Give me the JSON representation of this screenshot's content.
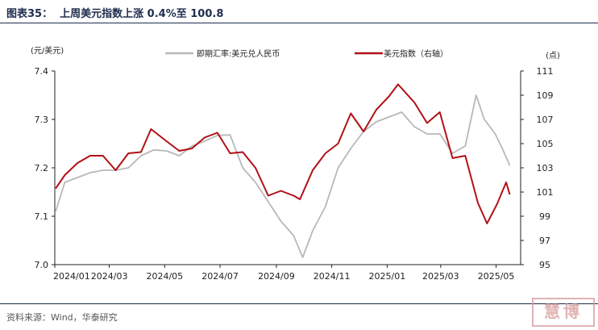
{
  "header": {
    "title": "图表35：  上周美元指数上涨 0.4%至 100.8"
  },
  "footer": {
    "source": "资料来源：Wind，华泰研究"
  },
  "watermark": {
    "text": "慧博"
  },
  "chart_data": {
    "type": "line",
    "title": "",
    "left_unit": "(元/美元)",
    "right_unit": "(点)",
    "x_ticks": [
      "2024/01",
      "2024/03",
      "2024/05",
      "2024/07",
      "2024/09",
      "2024/11",
      "2025/01",
      "2025/03",
      "2025/05"
    ],
    "y_left": {
      "range": [
        7.0,
        7.4
      ],
      "ticks": [
        "7.0",
        "7.1",
        "7.2",
        "7.3",
        "7.4"
      ]
    },
    "y_right": {
      "range": [
        95,
        111
      ],
      "ticks": [
        "95",
        "97",
        "99",
        "101",
        "103",
        "105",
        "107",
        "109",
        "111"
      ]
    },
    "legend_position": "top",
    "series": [
      {
        "name": "即期汇率:美元兑人民币",
        "axis": "left",
        "color": "#b8b8b8",
        "points": [
          [
            "2024/01/02",
            7.11
          ],
          [
            "2024/01/12",
            7.17
          ],
          [
            "2024/01/26",
            7.18
          ],
          [
            "2024/02/09",
            7.19
          ],
          [
            "2024/02/23",
            7.195
          ],
          [
            "2024/03/08",
            7.195
          ],
          [
            "2024/03/22",
            7.2
          ],
          [
            "2024/04/05",
            7.225
          ],
          [
            "2024/04/19",
            7.237
          ],
          [
            "2024/05/03",
            7.235
          ],
          [
            "2024/05/17",
            7.225
          ],
          [
            "2024/05/31",
            7.245
          ],
          [
            "2024/06/14",
            7.255
          ],
          [
            "2024/06/28",
            7.267
          ],
          [
            "2024/07/12",
            7.268
          ],
          [
            "2024/07/26",
            7.2
          ],
          [
            "2024/08/09",
            7.17
          ],
          [
            "2024/08/23",
            7.13
          ],
          [
            "2024/09/06",
            7.09
          ],
          [
            "2024/09/20",
            7.06
          ],
          [
            "2024/09/30",
            7.015
          ],
          [
            "2024/10/11",
            7.07
          ],
          [
            "2024/10/25",
            7.12
          ],
          [
            "2024/11/08",
            7.2
          ],
          [
            "2024/11/22",
            7.24
          ],
          [
            "2024/12/06",
            7.275
          ],
          [
            "2024/12/20",
            7.295
          ],
          [
            "2025/01/03",
            7.305
          ],
          [
            "2025/01/17",
            7.315
          ],
          [
            "2025/01/31",
            7.285
          ],
          [
            "2025/02/14",
            7.27
          ],
          [
            "2025/02/28",
            7.27
          ],
          [
            "2025/03/14",
            7.23
          ],
          [
            "2025/03/28",
            7.245
          ],
          [
            "2025/04/09",
            7.35
          ],
          [
            "2025/04/18",
            7.3
          ],
          [
            "2025/04/30",
            7.27
          ],
          [
            "2025/05/09",
            7.235
          ],
          [
            "2025/05/16",
            7.205
          ]
        ]
      },
      {
        "name": "美元指数（右轴）",
        "axis": "right",
        "color": "#b01116",
        "points": [
          [
            "2024/01/02",
            101.3
          ],
          [
            "2024/01/12",
            102.4
          ],
          [
            "2024/01/26",
            103.4
          ],
          [
            "2024/02/09",
            104.0
          ],
          [
            "2024/02/23",
            104.0
          ],
          [
            "2024/03/08",
            102.8
          ],
          [
            "2024/03/22",
            104.2
          ],
          [
            "2024/04/05",
            104.3
          ],
          [
            "2024/04/16",
            106.2
          ],
          [
            "2024/05/03",
            105.2
          ],
          [
            "2024/05/17",
            104.4
          ],
          [
            "2024/05/31",
            104.6
          ],
          [
            "2024/06/14",
            105.5
          ],
          [
            "2024/06/28",
            105.9
          ],
          [
            "2024/07/12",
            104.2
          ],
          [
            "2024/07/26",
            104.3
          ],
          [
            "2024/08/09",
            103.0
          ],
          [
            "2024/08/23",
            100.7
          ],
          [
            "2024/09/06",
            101.1
          ],
          [
            "2024/09/20",
            100.7
          ],
          [
            "2024/09/27",
            100.4
          ],
          [
            "2024/10/11",
            102.8
          ],
          [
            "2024/10/25",
            104.2
          ],
          [
            "2024/11/08",
            105.0
          ],
          [
            "2024/11/22",
            107.5
          ],
          [
            "2024/12/06",
            106.0
          ],
          [
            "2024/12/20",
            107.8
          ],
          [
            "2025/01/03",
            108.9
          ],
          [
            "2025/01/13",
            109.9
          ],
          [
            "2025/01/31",
            108.4
          ],
          [
            "2025/02/14",
            106.7
          ],
          [
            "2025/02/28",
            107.6
          ],
          [
            "2025/03/14",
            103.8
          ],
          [
            "2025/03/28",
            104.0
          ],
          [
            "2025/04/11",
            100.1
          ],
          [
            "2025/04/21",
            98.4
          ],
          [
            "2025/05/02",
            100.0
          ],
          [
            "2025/05/12",
            101.8
          ],
          [
            "2025/05/16",
            100.8
          ]
        ]
      }
    ]
  }
}
